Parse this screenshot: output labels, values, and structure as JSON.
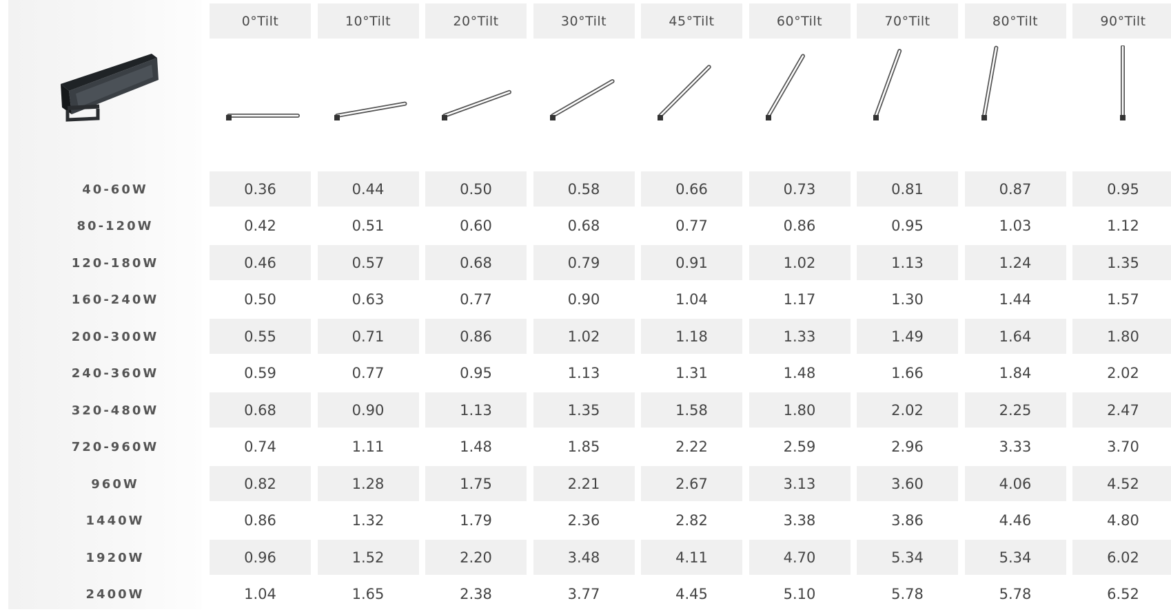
{
  "table": {
    "columns": [
      "0°Tilt",
      "10°Tilt",
      "20°Tilt",
      "30°Tilt",
      "45°Tilt",
      "60°Tilt",
      "70°Tilt",
      "80°Tilt",
      "90°Tilt"
    ],
    "tilt_angles": [
      0,
      10,
      20,
      30,
      45,
      60,
      70,
      80,
      90
    ],
    "product_icon": "floodlight-fixture-icon",
    "tilt_icon": "tilted-bar-icon",
    "rows": [
      {
        "label": "40-60W",
        "values": [
          "0.36",
          "0.44",
          "0.50",
          "0.58",
          "0.66",
          "0.73",
          "0.81",
          "0.87",
          "0.95"
        ]
      },
      {
        "label": "80-120W",
        "values": [
          "0.42",
          "0.51",
          "0.60",
          "0.68",
          "0.77",
          "0.86",
          "0.95",
          "1.03",
          "1.12"
        ]
      },
      {
        "label": "120-180W",
        "values": [
          "0.46",
          "0.57",
          "0.68",
          "0.79",
          "0.91",
          "1.02",
          "1.13",
          "1.24",
          "1.35"
        ]
      },
      {
        "label": "160-240W",
        "values": [
          "0.50",
          "0.63",
          "0.77",
          "0.90",
          "1.04",
          "1.17",
          "1.30",
          "1.44",
          "1.57"
        ]
      },
      {
        "label": "200-300W",
        "values": [
          "0.55",
          "0.71",
          "0.86",
          "1.02",
          "1.18",
          "1.33",
          "1.49",
          "1.64",
          "1.80"
        ]
      },
      {
        "label": "240-360W",
        "values": [
          "0.59",
          "0.77",
          "0.95",
          "1.13",
          "1.31",
          "1.48",
          "1.66",
          "1.84",
          "2.02"
        ]
      },
      {
        "label": "320-480W",
        "values": [
          "0.68",
          "0.90",
          "1.13",
          "1.35",
          "1.58",
          "1.80",
          "2.02",
          "2.25",
          "2.47"
        ]
      },
      {
        "label": "720-960W",
        "values": [
          "0.74",
          "1.11",
          "1.48",
          "1.85",
          "2.22",
          "2.59",
          "2.96",
          "3.33",
          "3.70"
        ]
      },
      {
        "label": "960W",
        "values": [
          "0.82",
          "1.28",
          "1.75",
          "2.21",
          "2.67",
          "3.13",
          "3.60",
          "4.06",
          "4.52"
        ]
      },
      {
        "label": "1440W",
        "values": [
          "0.86",
          "1.32",
          "1.79",
          "2.36",
          "2.82",
          "3.38",
          "3.86",
          "4.46",
          "4.80"
        ]
      },
      {
        "label": "1920W",
        "values": [
          "0.96",
          "1.52",
          "2.20",
          "3.48",
          "4.11",
          "4.70",
          "5.34",
          "5.34",
          "6.02"
        ]
      },
      {
        "label": "2400W",
        "values": [
          "1.04",
          "1.65",
          "2.38",
          "3.77",
          "4.45",
          "5.10",
          "5.78",
          "5.78",
          "6.52"
        ]
      }
    ]
  },
  "colors": {
    "cell_shade": "#f0f0f0",
    "text": "#444444",
    "fixture": "#2f3337"
  }
}
